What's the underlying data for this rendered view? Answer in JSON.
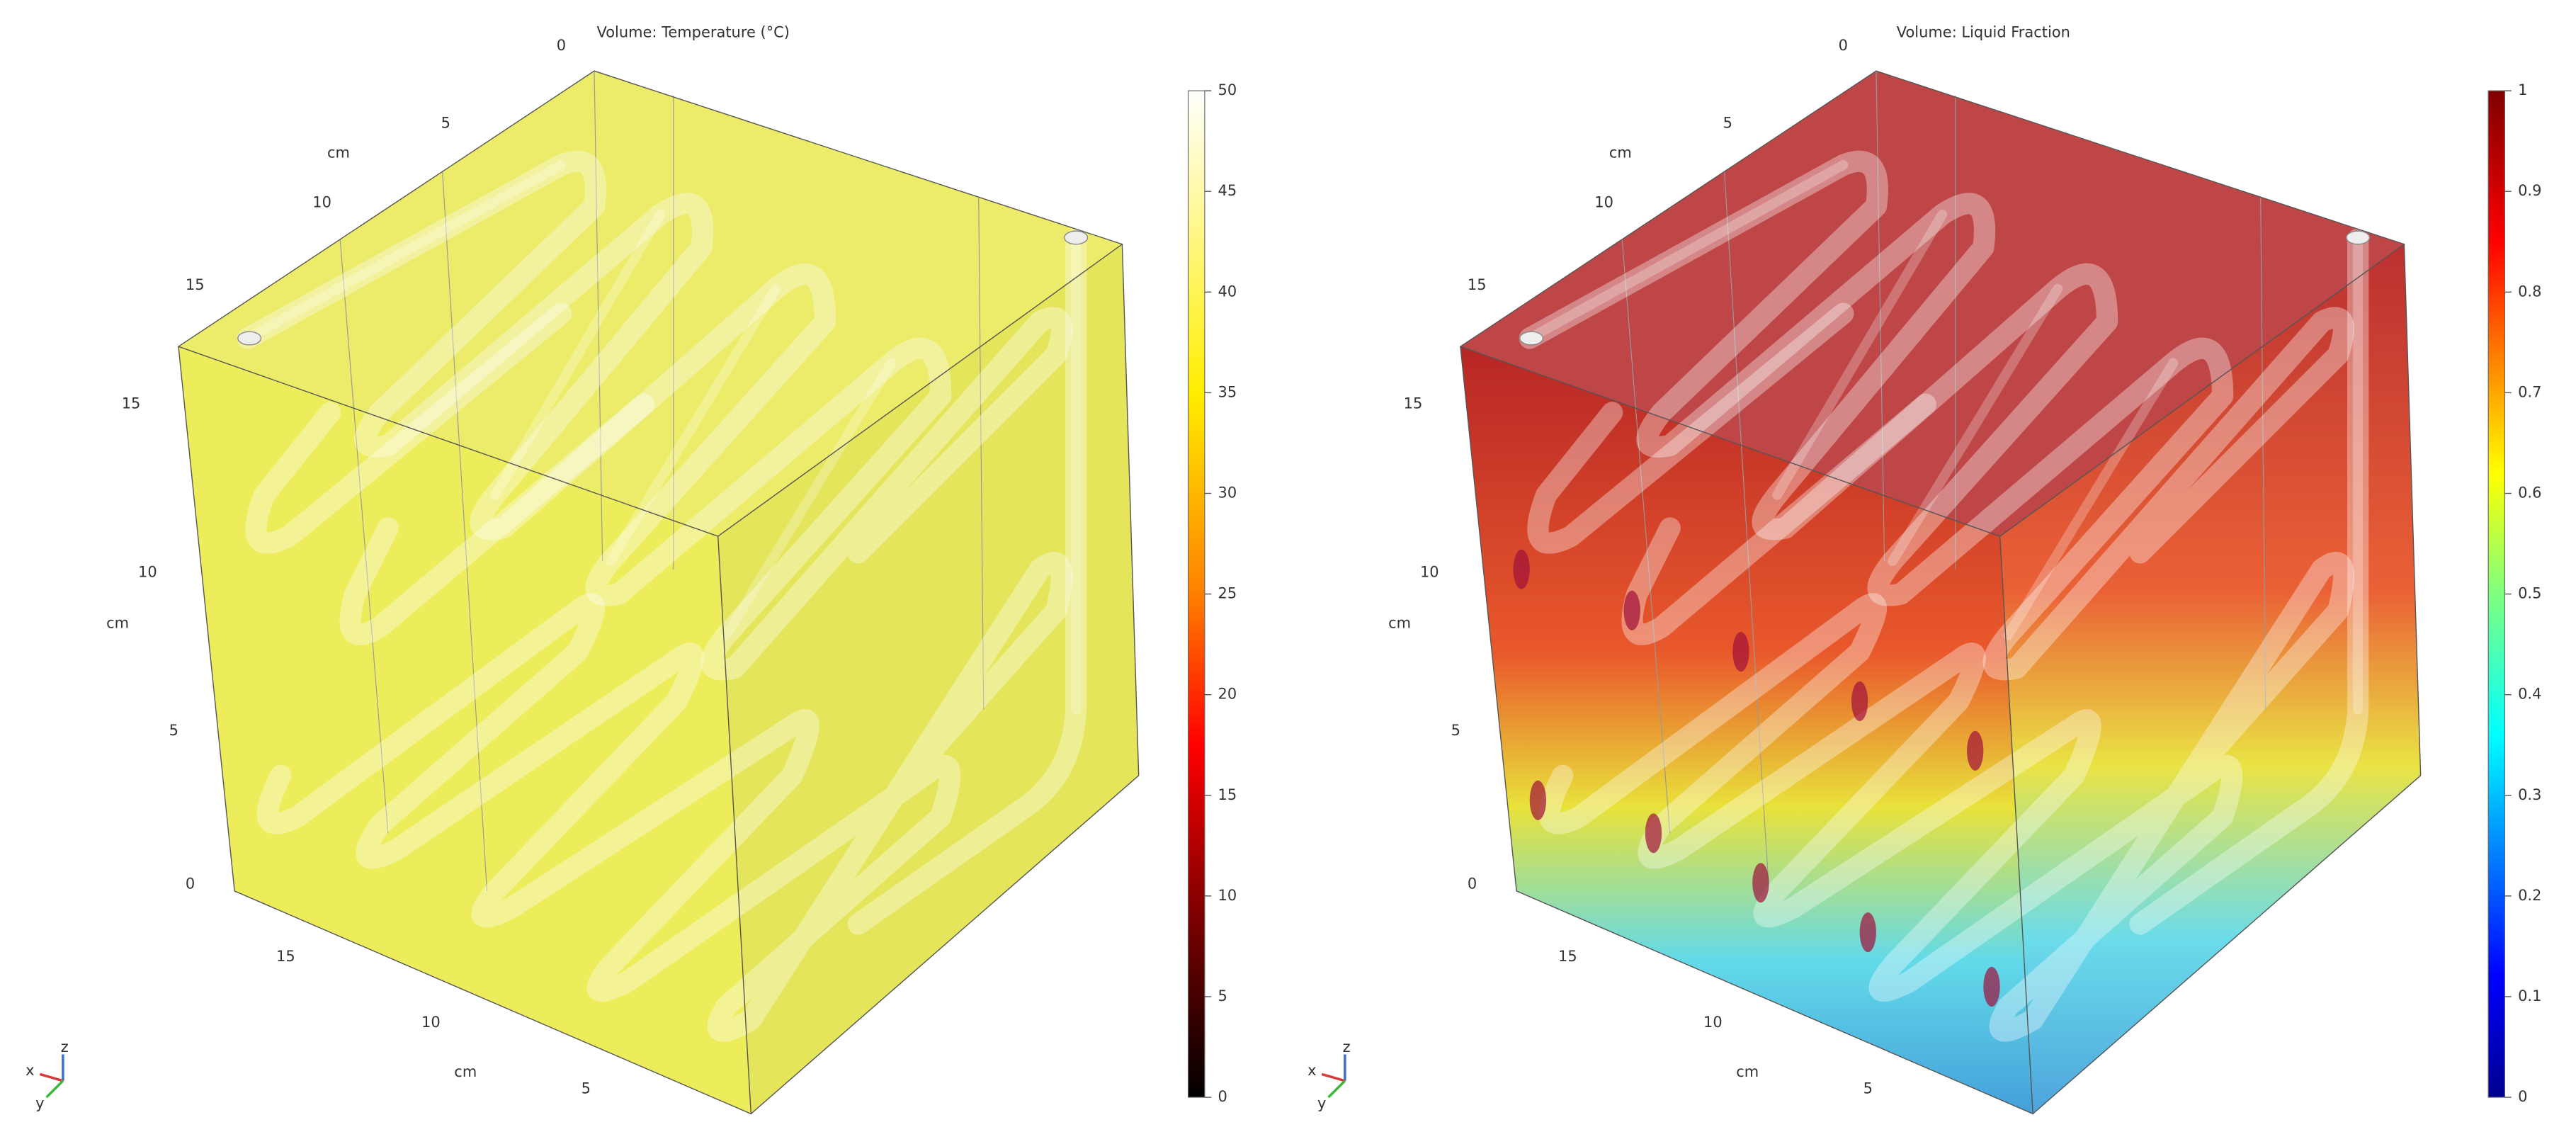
{
  "panels": [
    {
      "title": "Volume: Temperature (°C)",
      "colorbar_ticks": [
        0,
        5,
        10,
        15,
        20,
        25,
        30,
        35,
        40,
        45,
        50
      ],
      "top_axis": {
        "ticks": [
          0,
          5,
          10,
          15
        ],
        "unit": "cm"
      },
      "vertical_axis": {
        "ticks": [
          15,
          10,
          5,
          0
        ],
        "unit": "cm"
      },
      "bottom_axis": {
        "ticks": [
          15,
          10,
          5
        ],
        "unit": "cm"
      },
      "triad": [
        "x",
        "y",
        "z"
      ]
    },
    {
      "title": "Volume: Liquid Fraction",
      "colorbar_ticks": [
        0,
        0.1,
        0.2,
        0.3,
        0.4,
        0.5,
        0.6,
        0.7,
        0.8,
        0.9,
        1
      ],
      "top_axis": {
        "ticks": [
          0,
          5,
          10,
          15
        ],
        "unit": "cm"
      },
      "vertical_axis": {
        "ticks": [
          15,
          10,
          5,
          0
        ],
        "unit": "cm"
      },
      "bottom_axis": {
        "ticks": [
          15,
          10,
          5
        ],
        "unit": "cm"
      },
      "triad": [
        "x",
        "y",
        "z"
      ]
    }
  ]
}
